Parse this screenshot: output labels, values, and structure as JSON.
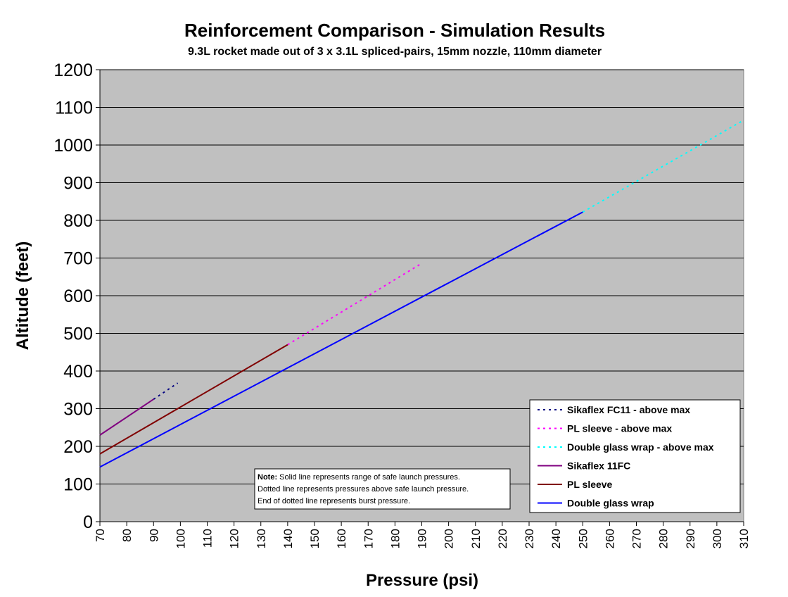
{
  "chart_data": {
    "type": "line",
    "title": "Reinforcement Comparison - Simulation Results",
    "subtitle": "9.3L rocket made out of 3 x 3.1L spliced-pairs, 15mm nozzle, 110mm diameter",
    "xlabel": "Pressure (psi)",
    "ylabel": "Altitude (feet)",
    "xlim": [
      70,
      310
    ],
    "ylim": [
      0,
      1200
    ],
    "x_ticks": [
      70,
      80,
      90,
      100,
      110,
      120,
      130,
      140,
      150,
      160,
      170,
      180,
      190,
      200,
      210,
      220,
      230,
      240,
      250,
      260,
      270,
      280,
      290,
      300,
      310
    ],
    "y_ticks": [
      0,
      100,
      200,
      300,
      400,
      500,
      600,
      700,
      800,
      900,
      1000,
      1100,
      1200
    ],
    "grid": "horizontal",
    "legend_position": "bottom-right",
    "series": [
      {
        "name": "Sikaflex FC11 - above max",
        "style": "dotted",
        "color": "#000080",
        "x": [
          90,
          99
        ],
        "y": [
          325,
          368
        ]
      },
      {
        "name": "PL sleeve - above max",
        "style": "dotted",
        "color": "#ff00ff",
        "x": [
          140,
          190
        ],
        "y": [
          470,
          686
        ]
      },
      {
        "name": "Double glass wrap - above max",
        "style": "dotted",
        "color": "#00ffff",
        "x": [
          250,
          310
        ],
        "y": [
          822,
          1066
        ]
      },
      {
        "name": "Sikaflex 11FC",
        "style": "solid",
        "color": "#800080",
        "x": [
          70,
          90
        ],
        "y": [
          230,
          325
        ]
      },
      {
        "name": "PL sleeve",
        "style": "solid",
        "color": "#800000",
        "x": [
          70,
          140
        ],
        "y": [
          180,
          470
        ]
      },
      {
        "name": "Double glass wrap",
        "style": "solid",
        "color": "#0000ff",
        "x": [
          70,
          250
        ],
        "y": [
          145,
          822
        ]
      }
    ],
    "note": {
      "bold": "Note:",
      "lines": [
        " Solid line represents range of safe launch pressures.",
        "Dotted line represents pressures above safe launch pressure.",
        "End of dotted line represents burst pressure."
      ]
    }
  },
  "colors": {
    "plot_background": "#c0c0c0",
    "gridline": "#000000",
    "page_background": "#ffffff"
  }
}
